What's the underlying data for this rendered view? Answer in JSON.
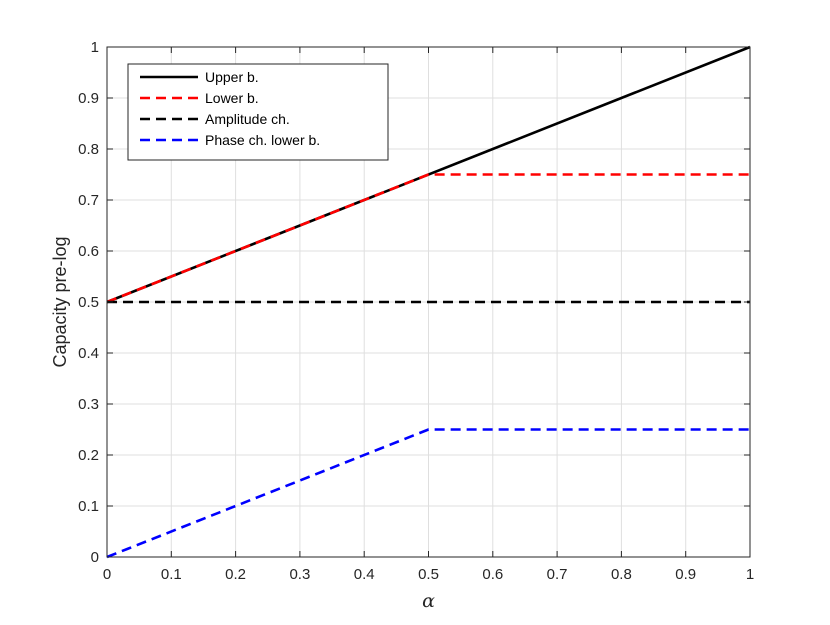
{
  "chart_data": {
    "type": "line",
    "xlabel": "α",
    "ylabel": "Capacity pre-log",
    "xlim": [
      0,
      1
    ],
    "ylim": [
      0,
      1
    ],
    "xticks": [
      "0",
      "0.1",
      "0.2",
      "0.3",
      "0.4",
      "0.5",
      "0.6",
      "0.7",
      "0.8",
      "0.9",
      "1"
    ],
    "yticks": [
      "0",
      "0.1",
      "0.2",
      "0.3",
      "0.4",
      "0.5",
      "0.6",
      "0.7",
      "0.8",
      "0.9",
      "1"
    ],
    "grid": true,
    "legend_position": "top-left",
    "series": [
      {
        "name": "Upper b.",
        "color": "#000000",
        "style": "solid",
        "x": [
          0,
          1
        ],
        "y": [
          0.5,
          1
        ]
      },
      {
        "name": "Lower b.",
        "color": "#ff0000",
        "style": "dashed",
        "x": [
          0,
          0.5,
          1
        ],
        "y": [
          0.5,
          0.75,
          0.75
        ]
      },
      {
        "name": "Amplitude ch.",
        "color": "#000000",
        "style": "dashed",
        "x": [
          0,
          1
        ],
        "y": [
          0.5,
          0.5
        ]
      },
      {
        "name": "Phase ch. lower b.",
        "color": "#0000ff",
        "style": "dashed",
        "x": [
          0,
          0.5,
          1
        ],
        "y": [
          0,
          0.25,
          0.25
        ]
      }
    ]
  }
}
